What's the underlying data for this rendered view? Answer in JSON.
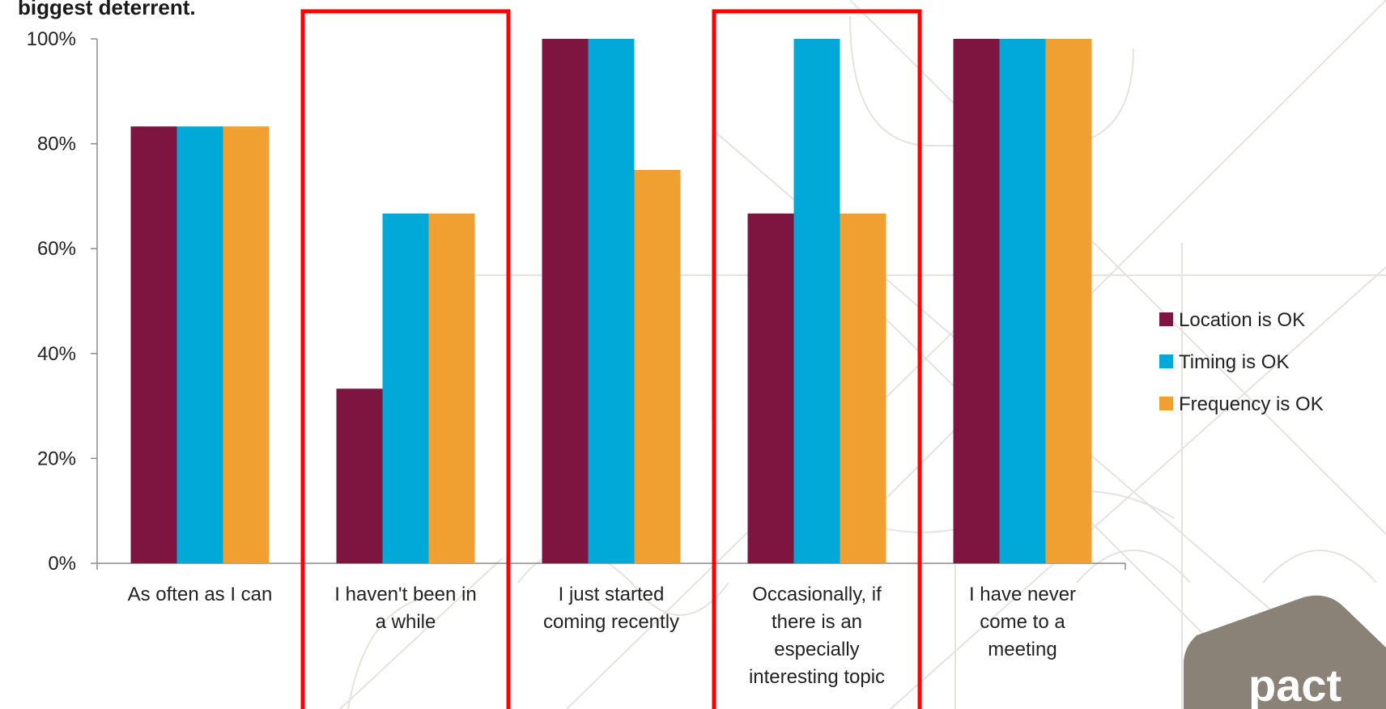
{
  "slide": {
    "title_fragment": "biggest deterrent.",
    "logo_text": "pact"
  },
  "chart_data": {
    "type": "bar",
    "categories": [
      "As often as I can",
      "I haven't been in a while",
      "I just started coming recently",
      "Occasionally, if there is an especially interesting topic",
      "I have never come to a meeting"
    ],
    "category_lines": [
      [
        "As often as I can"
      ],
      [
        "I haven't been in",
        "a while"
      ],
      [
        "I just started",
        "coming recently"
      ],
      [
        "Occasionally, if",
        "there is an",
        "especially",
        "interesting topic"
      ],
      [
        "I have never",
        "come to a",
        "meeting"
      ]
    ],
    "series": [
      {
        "name": "Location is OK",
        "color": "#7D1540",
        "values": [
          83.3,
          33.3,
          100,
          66.7,
          100
        ]
      },
      {
        "name": "Timing is OK",
        "color": "#00A9D8",
        "values": [
          83.3,
          66.7,
          100,
          100,
          100
        ]
      },
      {
        "name": "Frequency is OK",
        "color": "#F0A030",
        "values": [
          83.3,
          66.7,
          75,
          66.7,
          100
        ]
      }
    ],
    "ylim": [
      0,
      100
    ],
    "yticks": [
      0,
      20,
      40,
      60,
      80,
      100
    ],
    "ytick_labels": [
      "0%",
      "20%",
      "40%",
      "60%",
      "80%",
      "100%"
    ],
    "xlabel": "",
    "ylabel": "",
    "grid": false,
    "legend_position": "right",
    "highlighted_categories": [
      1,
      3
    ],
    "highlight_color": "#FF0000"
  }
}
